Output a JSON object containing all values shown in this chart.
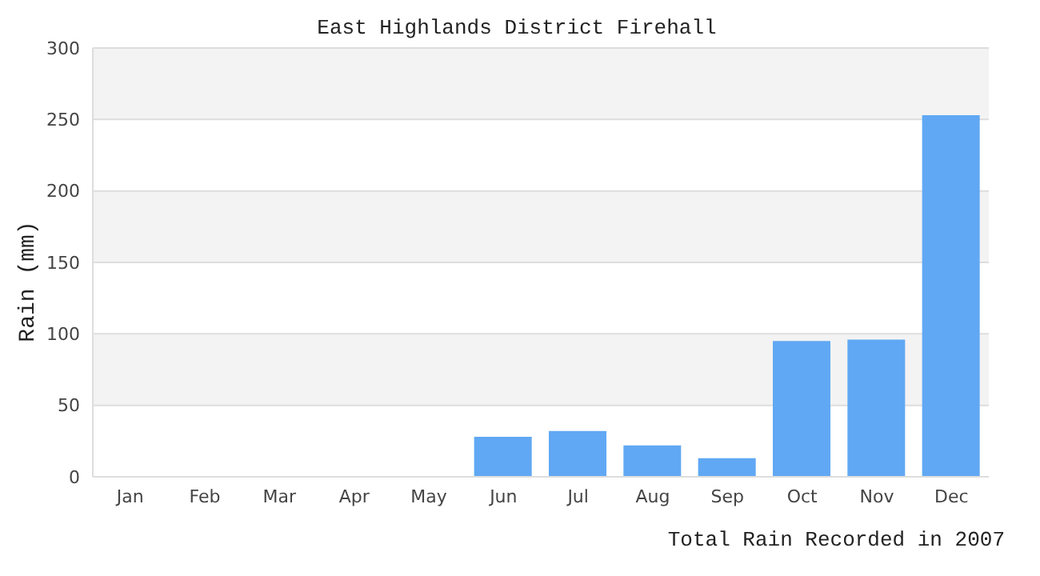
{
  "chart_data": {
    "type": "bar",
    "title": "East Highlands District Firehall",
    "xlabel": "Total Rain Recorded in 2007",
    "ylabel": "Rain (mm)",
    "categories": [
      "Jan",
      "Feb",
      "Mar",
      "Apr",
      "May",
      "Jun",
      "Jul",
      "Aug",
      "Sep",
      "Oct",
      "Nov",
      "Dec"
    ],
    "values": [
      0,
      0,
      0,
      0,
      0,
      28,
      32,
      22,
      13,
      95,
      96,
      253
    ],
    "color": "#60a8f4",
    "ylim": [
      0,
      300
    ],
    "yticks": [
      0,
      50,
      100,
      150,
      200,
      250,
      300
    ],
    "grid": "y"
  }
}
